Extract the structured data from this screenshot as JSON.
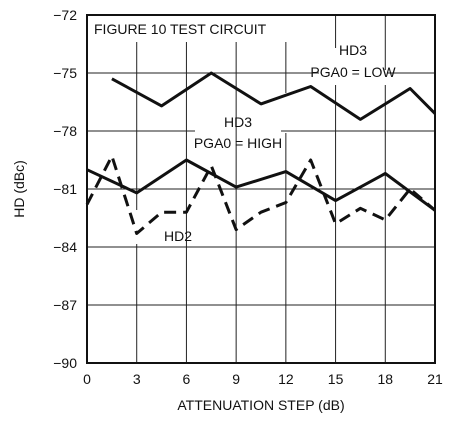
{
  "chart_data": {
    "type": "line",
    "xlabel": "ATTENUATION STEP (dB)",
    "ylabel": "HD (dBc)",
    "xlim": [
      0,
      21
    ],
    "ylim": [
      -90,
      -72
    ],
    "xticks": [
      0,
      3,
      6,
      9,
      12,
      15,
      18,
      21
    ],
    "xtick_labels": [
      "0",
      "3",
      "6",
      "9",
      "12",
      "15",
      "18",
      "21"
    ],
    "yticks": [
      -72,
      -75,
      -78,
      -81,
      -84,
      -87,
      -90
    ],
    "ytick_labels": [
      "−72",
      "−75",
      "−78",
      "−81",
      "−84",
      "−87",
      "−90"
    ],
    "grid": true,
    "legend": "none",
    "annotations": {
      "circuit_note": "FIGURE 10 TEST CIRCUIT",
      "hd3_low_line1": "HD3",
      "hd3_low_line2": "PGA0 = LOW",
      "hd3_high_line1": "HD3",
      "hd3_high_line2": "PGA0 = HIGH",
      "hd2_label": "HD2"
    },
    "series": [
      {
        "key": "hd3_low",
        "style": "solid",
        "x": [
          1.5,
          4.5,
          7.5,
          10.5,
          13.5,
          16.5,
          19.5,
          21
        ],
        "y": [
          -75.3,
          -76.7,
          -75.0,
          -76.6,
          -75.7,
          -77.4,
          -75.8,
          -77.1
        ]
      },
      {
        "key": "hd3_high",
        "style": "solid",
        "x": [
          0,
          3,
          6,
          9,
          12,
          15,
          18,
          21
        ],
        "y": [
          -80.0,
          -81.2,
          -79.5,
          -80.9,
          -80.1,
          -81.6,
          -80.2,
          -82.1
        ]
      },
      {
        "key": "hd2",
        "style": "dashed",
        "x": [
          0,
          1.5,
          3,
          4.5,
          6,
          7.5,
          9,
          10.5,
          12,
          13.5,
          15,
          16.5,
          18,
          19.5,
          21
        ],
        "y": [
          -81.8,
          -79.3,
          -83.3,
          -82.2,
          -82.2,
          -79.8,
          -83.1,
          -82.2,
          -81.7,
          -79.5,
          -82.8,
          -82.0,
          -82.6,
          -81.0,
          -82.1
        ]
      }
    ]
  }
}
